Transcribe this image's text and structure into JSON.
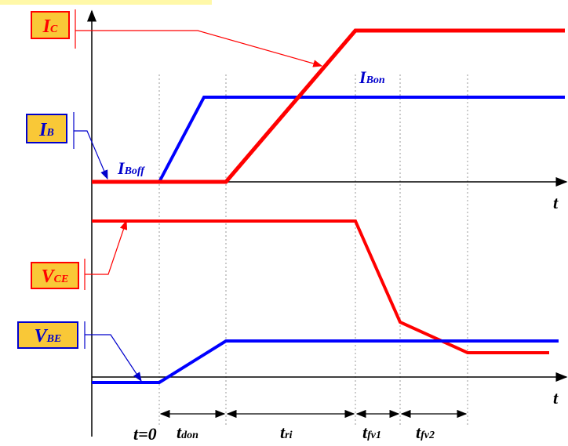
{
  "labels": {
    "ic": {
      "main": "I",
      "sub": "C"
    },
    "ib": {
      "main": "I",
      "sub": "B"
    },
    "vce": {
      "main": "V",
      "sub": "CE"
    },
    "vbe": {
      "main": "V",
      "sub": "BE"
    },
    "ibon": {
      "main": "I",
      "sub": "Bon"
    },
    "iboff": {
      "main": "I",
      "sub": "Boff"
    }
  },
  "axes": {
    "t_upper": "t",
    "t_lower": "t"
  },
  "timing": {
    "t0": "t=0",
    "tdon": {
      "main": "t",
      "sub": "don"
    },
    "tri": {
      "main": "t",
      "sub": "ri"
    },
    "tfv1": {
      "main": "t",
      "sub": "fv1"
    },
    "tfv2": {
      "main": "t",
      "sub": "fv2"
    }
  },
  "colors": {
    "current_collector": "#ff0000",
    "base_signal": "#0000ff",
    "label_fill": "#f9c837"
  }
}
